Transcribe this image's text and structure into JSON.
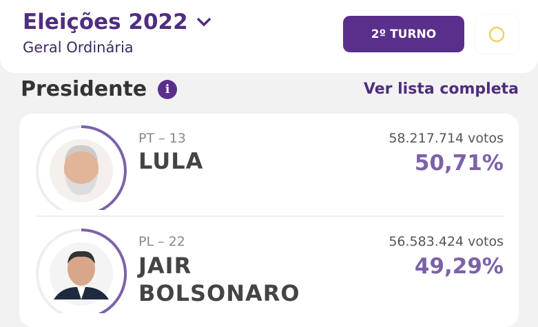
{
  "header": {
    "title": "Eleições 2022",
    "subtitle": "Geral Ordinária",
    "turno_label": "2º TURNO",
    "dropdown_icon": "chevron-down-icon",
    "theme_icon": "circle-icon"
  },
  "section": {
    "title": "Presidente",
    "info_icon": "info-icon",
    "link": "Ver lista completa"
  },
  "colors": {
    "primary": "#5a2f8c",
    "percent": "#7b62a8",
    "ring": "#7b62a8",
    "theme_icon": "#f0d060"
  },
  "candidates": [
    {
      "party": "PT – 13",
      "name_lines": [
        "LULA"
      ],
      "votes": "58.217.714 votos",
      "percent": "50,71%",
      "share": 50.71
    },
    {
      "party": "PL – 22",
      "name_lines": [
        "JAIR",
        "BOLSONARO"
      ],
      "votes": "56.583.424 votos",
      "percent": "49,29%",
      "share": 49.29
    }
  ]
}
